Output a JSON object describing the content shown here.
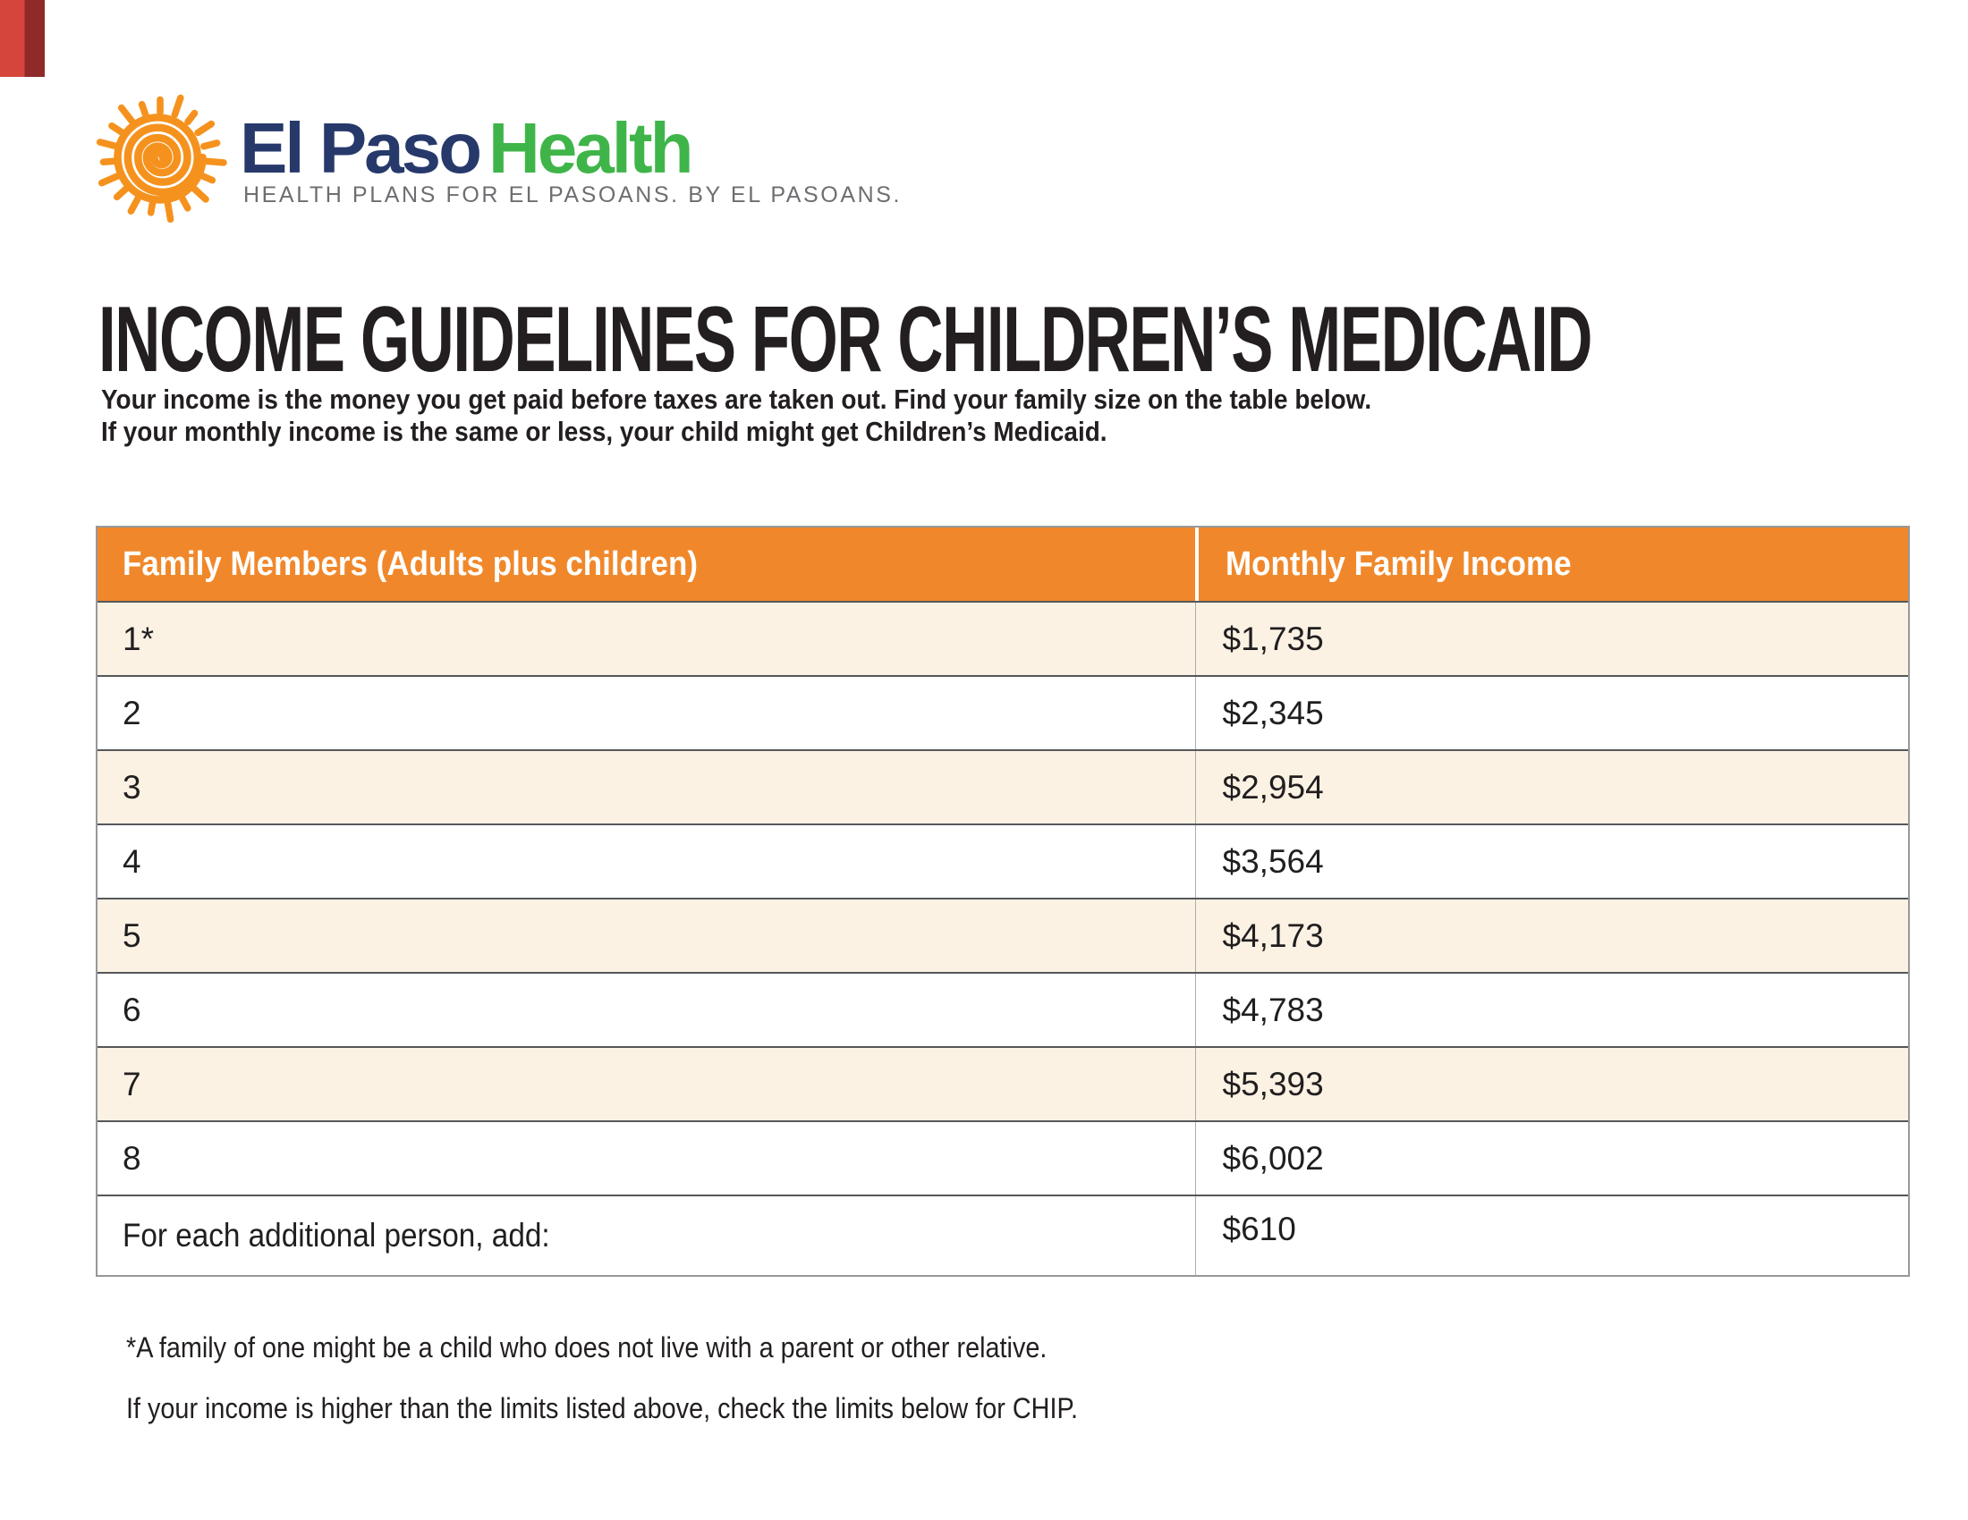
{
  "logo": {
    "brand_part1": "El Paso",
    "brand_part2": "Health",
    "tagline": "HEALTH PLANS FOR EL PASOANS. BY EL PASOANS.",
    "colors": {
      "sun_orange": "#F5921E",
      "navy": "#27396B",
      "green": "#3FB549",
      "tagline_gray": "#6D6E71"
    }
  },
  "title": "INCOME GUIDELINES FOR CHILDREN’S MEDICAID",
  "intro_line1": "Your income is the money you get paid before taxes are taken out. Find your family size on the table below.",
  "intro_line2": "If your monthly income is the same or less, your child might get Children’s Medicaid.",
  "table": {
    "header": {
      "col1": "Family Members (Adults plus children)",
      "col2": "Monthly Family Income"
    },
    "header_bg": "#F0882B",
    "alt_row_bg": "#FBF2E4",
    "rows": [
      {
        "members": "1*",
        "income": "$1,735"
      },
      {
        "members": "2",
        "income": "$2,345"
      },
      {
        "members": "3",
        "income": "$2,954"
      },
      {
        "members": "4",
        "income": "$3,564"
      },
      {
        "members": "5",
        "income": "$4,173"
      },
      {
        "members": "6",
        "income": "$4,783"
      },
      {
        "members": "7",
        "income": "$5,393"
      },
      {
        "members": "8",
        "income": "$6,002"
      }
    ],
    "footer_row": {
      "label": "For each additional person, add:",
      "income": "$610"
    }
  },
  "footnote1": "*A family of one might be a child who does not live with a parent or other relative.",
  "footnote2": "If your income is higher than the limits listed above, check the limits below for CHIP."
}
